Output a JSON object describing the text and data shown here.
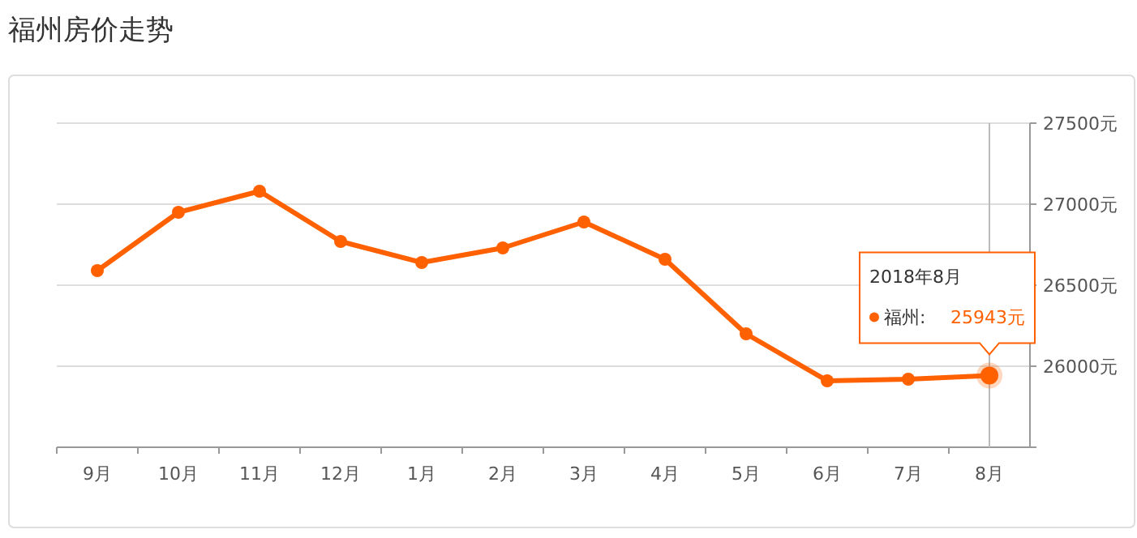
{
  "chart_data": {
    "type": "line",
    "title": "福州房价走势",
    "categories": [
      "9月",
      "10月",
      "11月",
      "12月",
      "1月",
      "2月",
      "3月",
      "4月",
      "5月",
      "6月",
      "7月",
      "8月"
    ],
    "series": [
      {
        "name": "福州:",
        "color": "#ff6000",
        "values": [
          26590,
          26950,
          27080,
          26770,
          26640,
          26730,
          26890,
          26660,
          26200,
          25910,
          25920,
          25943
        ],
        "value_labels": [
          null,
          null,
          null,
          null,
          null,
          null,
          null,
          null,
          null,
          null,
          null,
          "25943元"
        ]
      }
    ],
    "ylim": [
      25500,
      27500
    ],
    "yticks": [
      {
        "value": 25500,
        "label": null
      },
      {
        "value": 26000,
        "label": "26000元"
      },
      {
        "value": 26500,
        "label": "26500元"
      },
      {
        "value": 27000,
        "label": "27000元"
      },
      {
        "value": 27500,
        "label": "27500元"
      }
    ],
    "grid": "y",
    "marker": "circle",
    "line_style": "solid",
    "ref_lines": [
      {
        "axis": "x",
        "value": "8月",
        "color": "#bbbbbb"
      }
    ],
    "annotations": [
      "2018年8月"
    ]
  }
}
